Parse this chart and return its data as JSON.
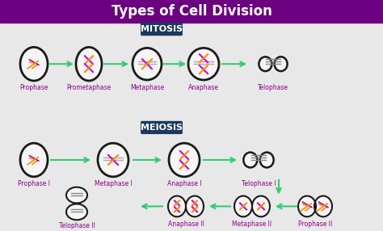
{
  "title": "Types of Cell Division",
  "title_bg": "#6b0080",
  "title_color": "#ffffff",
  "bg_color": "#e8e8e8",
  "mitosis_label": "MITOSIS",
  "meiosis_label": "MEIOSIS",
  "section_bg": "#1a3a5c",
  "section_text_color": "#ffffff",
  "cell_outline": "#1a1a1a",
  "cell_fill": "#f5f5f5",
  "arrow_color": "#2ecc71",
  "label_color": "#8b008b",
  "mitosis_phases": [
    "Prophase",
    "Prometaphase",
    "Metaphase",
    "Anaphase",
    "Telophase"
  ],
  "meiosis_top_phases": [
    "Prophase I",
    "Metaphase I",
    "Anaphase I",
    "Telophase I"
  ],
  "meiosis_bottom_phases": [
    "Telophase II",
    "Anaphase II",
    "Metaphase II",
    "Prophase II"
  ]
}
